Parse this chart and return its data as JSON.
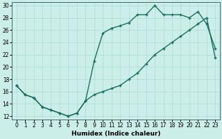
{
  "xlabel": "Humidex (Indice chaleur)",
  "bg_color": "#cceee8",
  "line_color": "#1a6e60",
  "grid_color": "#aaddd5",
  "xlim": [
    -0.5,
    23.5
  ],
  "ylim": [
    11.5,
    30.5
  ],
  "xticks": [
    0,
    1,
    2,
    3,
    4,
    5,
    6,
    7,
    8,
    9,
    10,
    11,
    12,
    13,
    14,
    15,
    16,
    17,
    18,
    19,
    20,
    21,
    22,
    23
  ],
  "yticks": [
    12,
    14,
    16,
    18,
    20,
    22,
    24,
    26,
    28,
    30
  ],
  "line1_x": [
    0,
    1,
    2,
    3,
    4,
    5,
    6,
    7,
    8,
    9,
    10,
    11,
    12,
    13,
    14,
    15,
    16,
    17,
    18,
    19,
    20,
    21,
    22,
    23
  ],
  "line1_y": [
    17,
    15.5,
    15,
    13.5,
    13,
    12.5,
    12,
    12.5,
    14.5,
    21,
    25.5,
    26.3,
    26.7,
    27.2,
    28.5,
    28.5,
    30,
    28.5,
    28.5,
    28.5,
    28,
    29,
    27,
    23
  ],
  "line2_x": [
    0,
    1,
    2,
    3,
    4,
    5,
    6,
    7,
    8,
    9,
    10,
    11,
    12,
    13,
    14,
    15,
    16,
    17,
    18,
    19,
    20,
    21,
    22,
    23
  ],
  "line2_y": [
    17,
    15.5,
    15,
    13.5,
    13,
    12.5,
    12,
    12.5,
    14.5,
    15.5,
    16,
    16.5,
    17,
    18,
    19,
    20.5,
    22,
    23,
    24,
    25,
    26,
    27,
    28,
    21.5
  ],
  "tick_fontsize": 5.5,
  "xlabel_fontsize": 6.5,
  "linewidth": 1.0,
  "markersize": 3.5,
  "marker": "+"
}
